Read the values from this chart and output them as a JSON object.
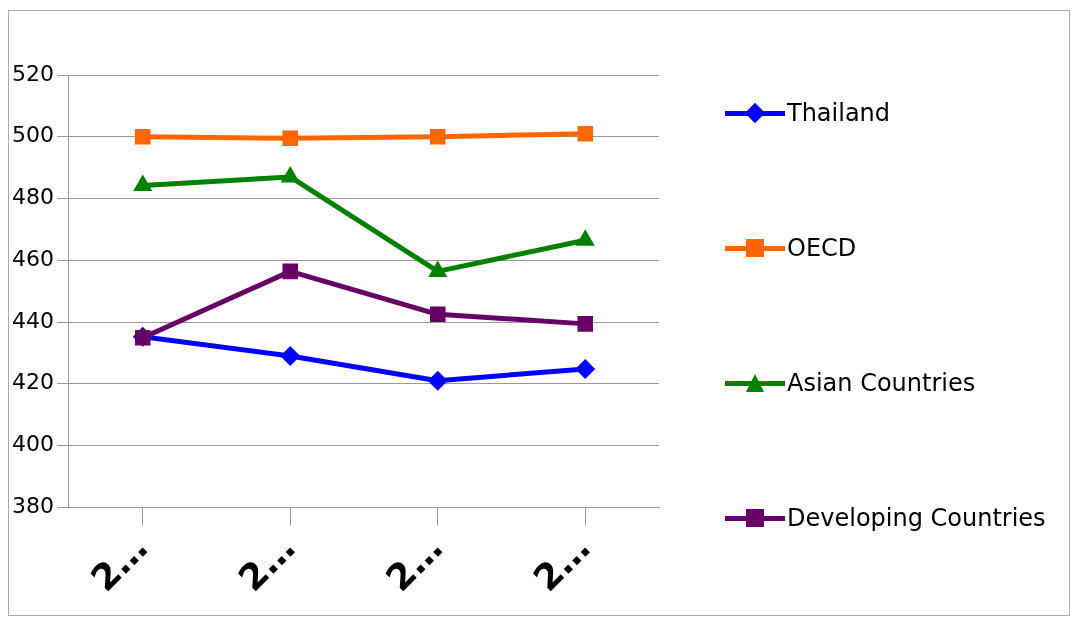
{
  "chart_data": {
    "type": "line",
    "categories": [
      "2…",
      "2…",
      "2…",
      "2…"
    ],
    "series": [
      {
        "name": "Thailand",
        "color": "#0000ff",
        "marker": "diamond",
        "values": [
          435.2,
          429,
          421,
          424.8
        ]
      },
      {
        "name": "OECD",
        "color": "#ff6600",
        "marker": "square",
        "values": [
          500,
          499.5,
          500,
          501
        ]
      },
      {
        "name": "Asian Countries",
        "color": "#008000",
        "marker": "triangle",
        "values": [
          484.2,
          487,
          456.4,
          466.5
        ]
      },
      {
        "name": "Developing Countries",
        "color": "#660066",
        "marker": "square",
        "values": [
          434.9,
          456.4,
          442.5,
          439.4
        ]
      }
    ],
    "ylim": [
      380,
      520
    ],
    "yticks": [
      380,
      400,
      420,
      440,
      460,
      480,
      500,
      520
    ],
    "grid": "y",
    "legend": "right",
    "line_style": "solid"
  }
}
